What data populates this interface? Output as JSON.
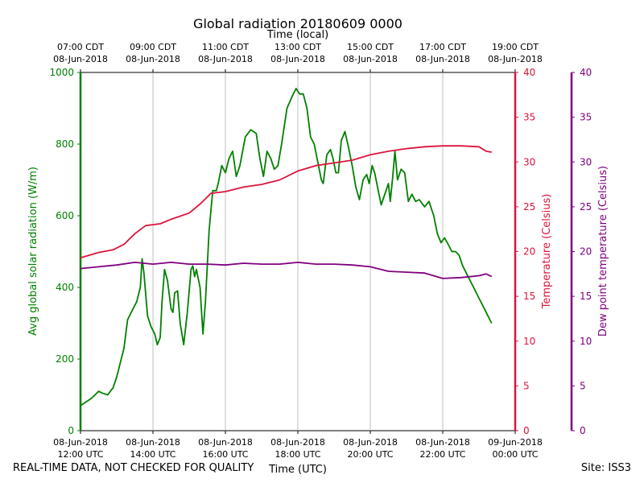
{
  "chart_data": {
    "type": "line",
    "title": "Global radiation 20180609 0000",
    "xlabel": "Time (UTC)",
    "x2label": "Time (local)",
    "x_range_hours_utc": [
      12,
      24
    ],
    "bottom_ticks": [
      {
        "t": 12,
        "l1": "08-Jun-2018",
        "l2": "12:00 UTC"
      },
      {
        "t": 14,
        "l1": "08-Jun-2018",
        "l2": "14:00 UTC"
      },
      {
        "t": 16,
        "l1": "08-Jun-2018",
        "l2": "16:00 UTC"
      },
      {
        "t": 18,
        "l1": "08-Jun-2018",
        "l2": "18:00 UTC"
      },
      {
        "t": 20,
        "l1": "08-Jun-2018",
        "l2": "20:00 UTC"
      },
      {
        "t": 22,
        "l1": "08-Jun-2018",
        "l2": "22:00 UTC"
      },
      {
        "t": 24,
        "l1": "09-Jun-2018",
        "l2": "00:00 UTC"
      }
    ],
    "top_ticks": [
      {
        "t": 12,
        "l1": "07:00 CDT",
        "l2": "08-Jun-2018"
      },
      {
        "t": 14,
        "l1": "09:00 CDT",
        "l2": "08-Jun-2018"
      },
      {
        "t": 16,
        "l1": "11:00 CDT",
        "l2": "08-Jun-2018"
      },
      {
        "t": 18,
        "l1": "13:00 CDT",
        "l2": "08-Jun-2018"
      },
      {
        "t": 20,
        "l1": "15:00 CDT",
        "l2": "08-Jun-2018"
      },
      {
        "t": 22,
        "l1": "17:00 CDT",
        "l2": "08-Jun-2018"
      },
      {
        "t": 24,
        "l1": "19:00 CDT",
        "l2": "08-Jun-2018"
      }
    ],
    "grid_x": true,
    "axes": {
      "radiation": {
        "label": "Avg global solar radiation (W/m)",
        "ylim": [
          0,
          1000
        ],
        "ticks": [
          0,
          200,
          400,
          600,
          800,
          1000
        ],
        "color": "#008000"
      },
      "temperature": {
        "label": "Temperature (Celsius)",
        "ylim": [
          0,
          40
        ],
        "ticks": [
          0,
          5,
          10,
          15,
          20,
          25,
          30,
          35,
          40
        ],
        "color": "#dc143c"
      },
      "dewpoint": {
        "label": "Dew point temperature (Celsius)",
        "ylim": [
          0,
          40
        ],
        "ticks": [
          0,
          5,
          10,
          15,
          20,
          25,
          30,
          35,
          40
        ],
        "color": "#800080"
      }
    },
    "series": [
      {
        "name": "Avg global solar radiation",
        "axis": "radiation",
        "color": "#008000",
        "points": [
          [
            12.0,
            70
          ],
          [
            12.3,
            90
          ],
          [
            12.5,
            110
          ],
          [
            12.6,
            105
          ],
          [
            12.75,
            100
          ],
          [
            12.9,
            120
          ],
          [
            13.0,
            150
          ],
          [
            13.2,
            230
          ],
          [
            13.3,
            310
          ],
          [
            13.45,
            340
          ],
          [
            13.55,
            360
          ],
          [
            13.65,
            400
          ],
          [
            13.7,
            480
          ],
          [
            13.75,
            440
          ],
          [
            13.85,
            320
          ],
          [
            13.95,
            290
          ],
          [
            14.05,
            270
          ],
          [
            14.12,
            240
          ],
          [
            14.2,
            260
          ],
          [
            14.25,
            360
          ],
          [
            14.32,
            450
          ],
          [
            14.4,
            420
          ],
          [
            14.5,
            340
          ],
          [
            14.55,
            330
          ],
          [
            14.6,
            385
          ],
          [
            14.68,
            390
          ],
          [
            14.75,
            300
          ],
          [
            14.85,
            240
          ],
          [
            14.95,
            330
          ],
          [
            15.05,
            450
          ],
          [
            15.1,
            460
          ],
          [
            15.15,
            430
          ],
          [
            15.2,
            450
          ],
          [
            15.3,
            400
          ],
          [
            15.38,
            270
          ],
          [
            15.45,
            360
          ],
          [
            15.55,
            560
          ],
          [
            15.65,
            670
          ],
          [
            15.75,
            670
          ],
          [
            15.8,
            690
          ],
          [
            15.9,
            740
          ],
          [
            16.0,
            720
          ],
          [
            16.1,
            760
          ],
          [
            16.2,
            780
          ],
          [
            16.3,
            710
          ],
          [
            16.4,
            740
          ],
          [
            16.55,
            820
          ],
          [
            16.7,
            840
          ],
          [
            16.85,
            830
          ],
          [
            16.95,
            760
          ],
          [
            17.05,
            710
          ],
          [
            17.15,
            780
          ],
          [
            17.25,
            760
          ],
          [
            17.35,
            730
          ],
          [
            17.45,
            740
          ],
          [
            17.55,
            800
          ],
          [
            17.7,
            900
          ],
          [
            17.85,
            935
          ],
          [
            17.95,
            955
          ],
          [
            18.05,
            940
          ],
          [
            18.15,
            940
          ],
          [
            18.25,
            900
          ],
          [
            18.35,
            820
          ],
          [
            18.45,
            800
          ],
          [
            18.55,
            750
          ],
          [
            18.65,
            700
          ],
          [
            18.7,
            690
          ],
          [
            18.8,
            770
          ],
          [
            18.9,
            785
          ],
          [
            18.97,
            760
          ],
          [
            19.05,
            720
          ],
          [
            19.12,
            720
          ],
          [
            19.2,
            810
          ],
          [
            19.3,
            835
          ],
          [
            19.4,
            790
          ],
          [
            19.5,
            740
          ],
          [
            19.6,
            680
          ],
          [
            19.7,
            645
          ],
          [
            19.8,
            700
          ],
          [
            19.9,
            715
          ],
          [
            19.97,
            690
          ],
          [
            20.05,
            740
          ],
          [
            20.12,
            720
          ],
          [
            20.2,
            680
          ],
          [
            20.3,
            630
          ],
          [
            20.4,
            660
          ],
          [
            20.5,
            690
          ],
          [
            20.55,
            640
          ],
          [
            20.62,
            710
          ],
          [
            20.68,
            780
          ],
          [
            20.75,
            700
          ],
          [
            20.85,
            730
          ],
          [
            20.95,
            720
          ],
          [
            21.05,
            640
          ],
          [
            21.15,
            660
          ],
          [
            21.25,
            640
          ],
          [
            21.35,
            645
          ],
          [
            21.5,
            625
          ],
          [
            21.62,
            640
          ],
          [
            21.75,
            600
          ],
          [
            21.85,
            550
          ],
          [
            21.95,
            525
          ],
          [
            22.05,
            538
          ],
          [
            22.15,
            520
          ],
          [
            22.25,
            500
          ],
          [
            22.35,
            500
          ],
          [
            22.45,
            490
          ],
          [
            22.55,
            460
          ],
          [
            22.7,
            430
          ],
          [
            22.85,
            400
          ],
          [
            23.0,
            370
          ],
          [
            23.15,
            340
          ],
          [
            23.3,
            310
          ],
          [
            23.35,
            300
          ]
        ]
      },
      {
        "name": "Temperature",
        "axis": "temperature",
        "color": "#dc143c",
        "points": [
          [
            12.0,
            19.3
          ],
          [
            12.5,
            19.9
          ],
          [
            12.9,
            20.2
          ],
          [
            13.2,
            20.8
          ],
          [
            13.5,
            22.0
          ],
          [
            13.8,
            22.9
          ],
          [
            14.2,
            23.1
          ],
          [
            14.5,
            23.6
          ],
          [
            15.0,
            24.3
          ],
          [
            15.3,
            25.3
          ],
          [
            15.6,
            26.5
          ],
          [
            16.0,
            26.7
          ],
          [
            16.5,
            27.2
          ],
          [
            17.0,
            27.5
          ],
          [
            17.5,
            28.0
          ],
          [
            18.0,
            29.0
          ],
          [
            18.5,
            29.6
          ],
          [
            19.0,
            29.9
          ],
          [
            19.5,
            30.2
          ],
          [
            20.0,
            30.8
          ],
          [
            20.5,
            31.2
          ],
          [
            21.0,
            31.5
          ],
          [
            21.5,
            31.7
          ],
          [
            22.0,
            31.8
          ],
          [
            22.5,
            31.8
          ],
          [
            23.0,
            31.7
          ],
          [
            23.2,
            31.2
          ],
          [
            23.35,
            31.1
          ]
        ]
      },
      {
        "name": "Dew point temperature",
        "axis": "dewpoint",
        "color": "#800080",
        "points": [
          [
            12.0,
            18.1
          ],
          [
            12.5,
            18.3
          ],
          [
            13.0,
            18.5
          ],
          [
            13.5,
            18.8
          ],
          [
            14.0,
            18.6
          ],
          [
            14.5,
            18.8
          ],
          [
            15.0,
            18.6
          ],
          [
            15.5,
            18.6
          ],
          [
            16.0,
            18.5
          ],
          [
            16.5,
            18.7
          ],
          [
            17.0,
            18.6
          ],
          [
            17.5,
            18.6
          ],
          [
            18.0,
            18.8
          ],
          [
            18.5,
            18.6
          ],
          [
            19.0,
            18.6
          ],
          [
            19.5,
            18.5
          ],
          [
            20.0,
            18.3
          ],
          [
            20.5,
            17.8
          ],
          [
            21.0,
            17.7
          ],
          [
            21.5,
            17.6
          ],
          [
            22.0,
            17.0
          ],
          [
            22.5,
            17.1
          ],
          [
            23.0,
            17.3
          ],
          [
            23.2,
            17.5
          ],
          [
            23.35,
            17.2
          ]
        ]
      }
    ]
  },
  "footer": {
    "disclaimer": "REAL-TIME DATA, NOT CHECKED FOR QUALITY",
    "site": "Site: ISS3"
  }
}
